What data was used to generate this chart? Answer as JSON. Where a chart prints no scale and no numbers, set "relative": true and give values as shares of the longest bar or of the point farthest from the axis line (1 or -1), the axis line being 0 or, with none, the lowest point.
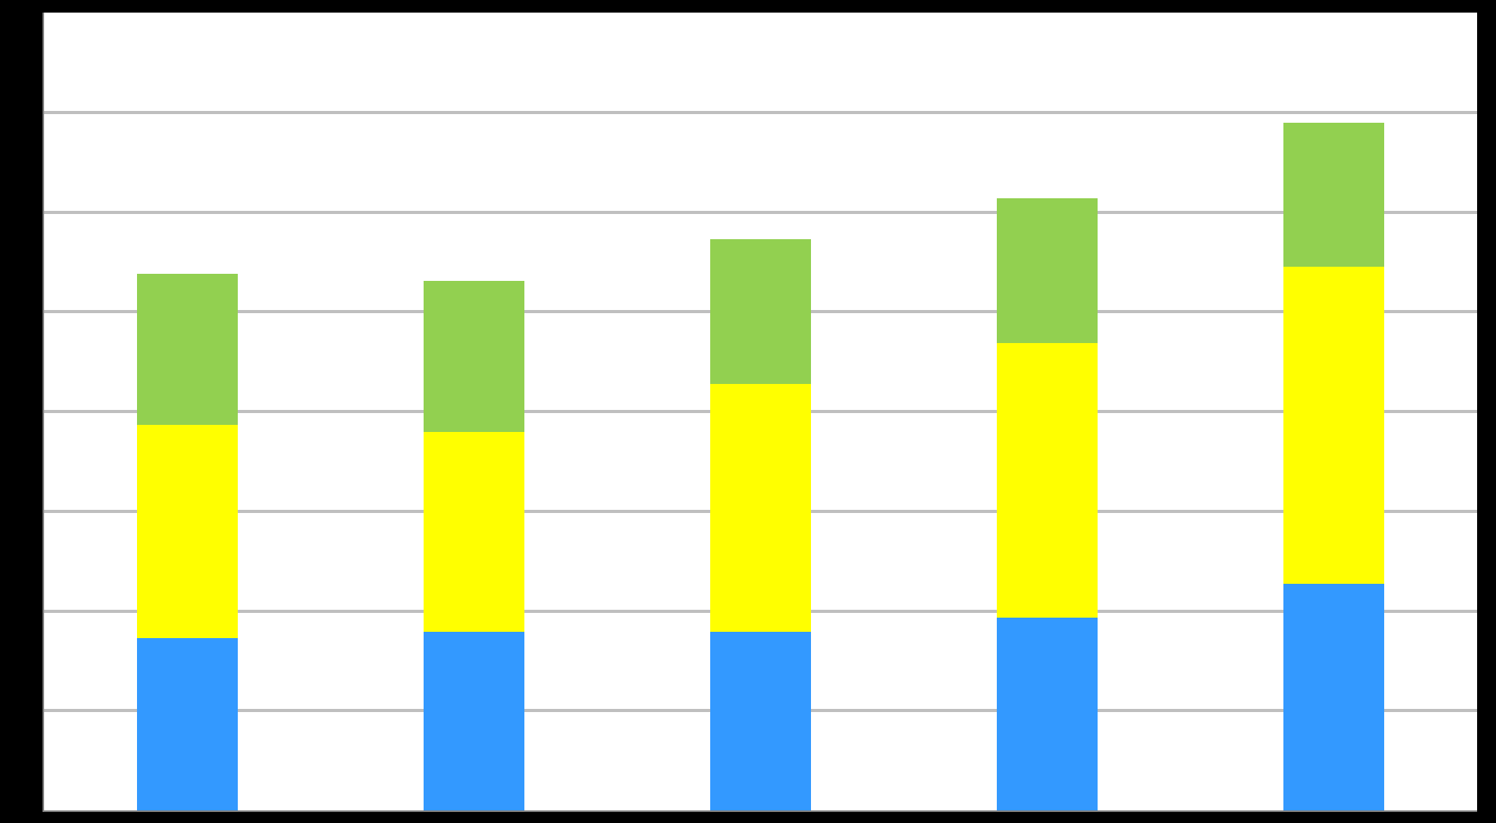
{
  "chart_data": {
    "type": "bar",
    "stacked": true,
    "relative": true,
    "grid": "y",
    "categories": [
      null,
      null,
      null,
      null,
      null
    ],
    "series": [
      {
        "color": "#3399ff",
        "values": [
          0.25,
          0.26,
          0.26,
          0.28,
          0.33
        ]
      },
      {
        "color": "#ffff00",
        "values": [
          0.31,
          0.29,
          0.36,
          0.4,
          0.46
        ]
      },
      {
        "color": "#92d050",
        "values": [
          0.22,
          0.22,
          0.21,
          0.21,
          0.21
        ]
      }
    ]
  }
}
